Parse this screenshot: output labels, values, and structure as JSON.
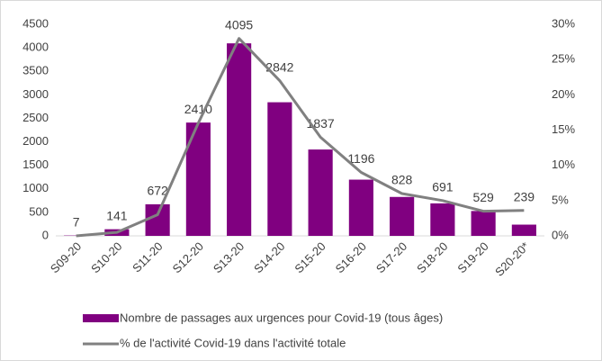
{
  "chart_data": {
    "type": "bar_line",
    "categories": [
      "S09-20",
      "S10-20",
      "S11-20",
      "S12-20",
      "S13-20",
      "S14-20",
      "S15-20",
      "S16-20",
      "S17-20",
      "S18-20",
      "S19-20",
      "S20-20*"
    ],
    "series": [
      {
        "name": "Nombre de passages aux urgences pour Covid-19 (tous âges)",
        "color": "#800080",
        "type": "bar",
        "values": [
          7,
          141,
          672,
          2410,
          4095,
          2842,
          1837,
          1196,
          828,
          691,
          529,
          239
        ]
      },
      {
        "name": "% de l'activité Covid-19 dans l'activité totale",
        "color": "#808080",
        "type": "line",
        "axis": "y2",
        "values": [
          0,
          0.5,
          3,
          16,
          28,
          22,
          14,
          9,
          6,
          5,
          3.5,
          3.6
        ]
      }
    ],
    "ylim": [
      0,
      4500
    ],
    "yticks": [
      0,
      500,
      1000,
      1500,
      2000,
      2500,
      3000,
      3500,
      4000,
      4500
    ],
    "y2lim": [
      0,
      30
    ],
    "y2ticks": [
      {
        "value": 0,
        "label": "0%"
      },
      {
        "value": 5,
        "label": "5%"
      },
      {
        "value": 10,
        "label": "10%"
      },
      {
        "value": 15,
        "label": "15%"
      },
      {
        "value": 20,
        "label": "20%"
      },
      {
        "value": 25,
        "label": "25%"
      },
      {
        "value": 30,
        "label": "30%"
      }
    ],
    "legend": "bottom"
  }
}
